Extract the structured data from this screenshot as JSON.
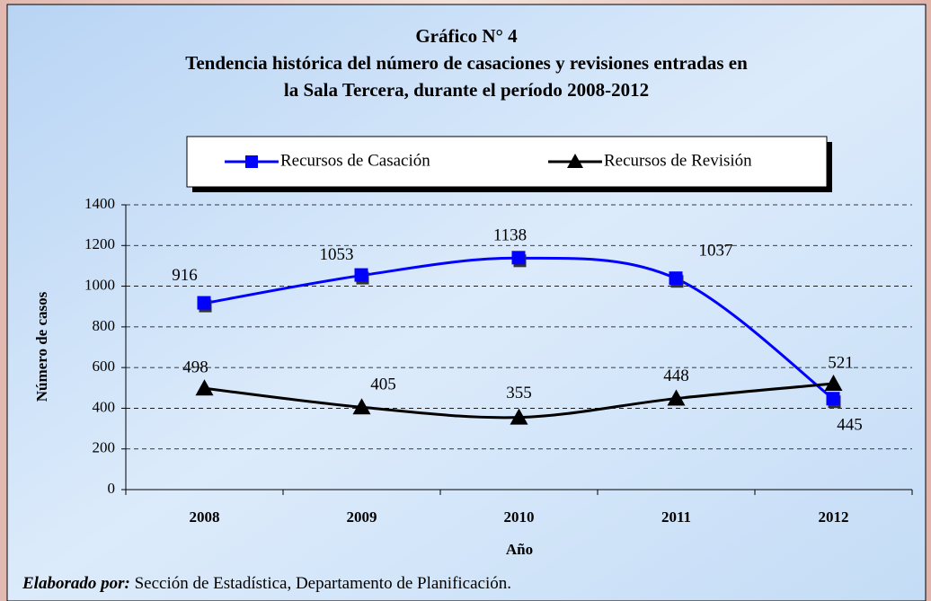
{
  "chart_data": {
    "type": "line",
    "title": "Gráfico N° 4",
    "subtitle": [
      "Tendencia histórica del número de casaciones y revisiones entradas en",
      "la Sala Tercera, durante el período 2008-2012"
    ],
    "x_label": "Año",
    "y_label": "Número de casos",
    "categories": [
      "2008",
      "2009",
      "2010",
      "2011",
      "2012"
    ],
    "series": [
      {
        "name": "Recursos de Casación",
        "color": "#0000ff",
        "marker": "square",
        "values": [
          916,
          1053,
          1138,
          1037,
          445
        ]
      },
      {
        "name": "Recursos de Revisión",
        "color": "#000000",
        "marker": "triangle",
        "values": [
          498,
          405,
          355,
          448,
          521
        ]
      }
    ],
    "ylim": [
      0,
      1400
    ],
    "yticks": [
      0,
      200,
      400,
      600,
      800,
      1000,
      1200,
      1400
    ],
    "grid": true,
    "legend": "top",
    "source_label": "Elaborado por:",
    "source": "Sección de Estadística, Departamento de Planificación."
  }
}
